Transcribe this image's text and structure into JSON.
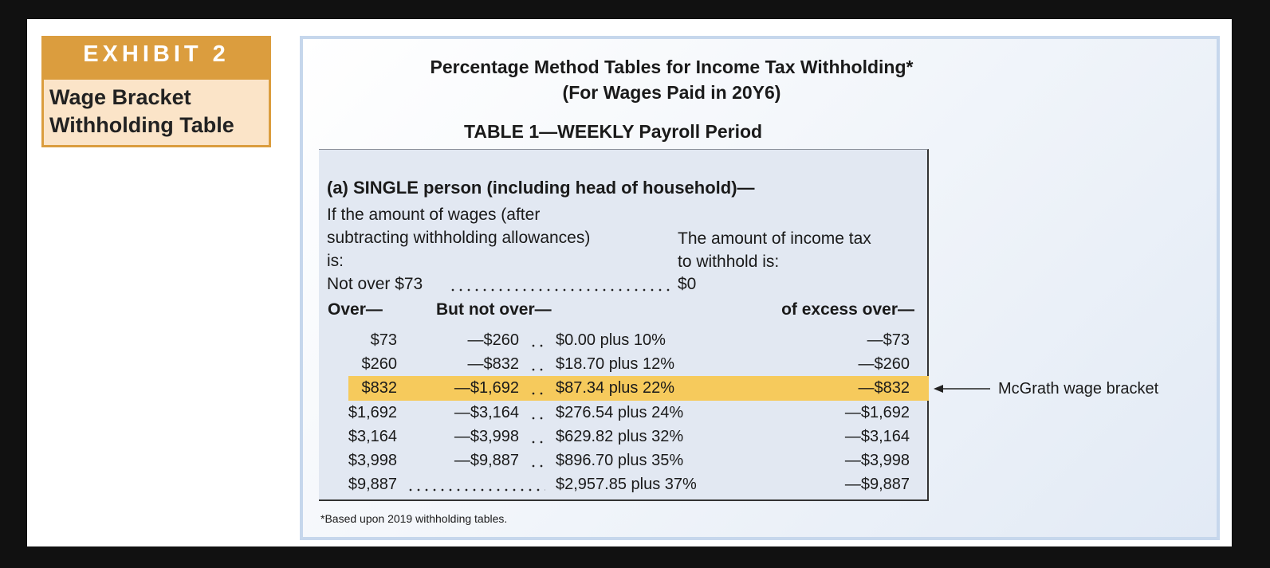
{
  "exhibit": {
    "label": "EXHIBIT 2",
    "title_lines": [
      "Wage Bracket",
      "Withholding Table"
    ]
  },
  "header": {
    "title_lines": [
      "Percentage Method Tables for Income Tax Withholding*",
      "(For Wages Paid in 20Y6)"
    ],
    "table_title": "TABLE 1—WEEKLY Payroll Period"
  },
  "table": {
    "section": "(a) SINGLE person (including head of household)—",
    "wages_header_lines": [
      "If the amount of wages (after",
      "subtracting withholding allowances)",
      "is:"
    ],
    "tax_header_lines": [
      "The amount of income tax",
      "to withhold is:"
    ],
    "first_row": {
      "condition": "Not over $73",
      "amount": "$0"
    },
    "columns": {
      "over": "Over—",
      "but_not_over": "But not over—",
      "excess": "of excess over—"
    },
    "rows": [
      {
        "over": "$73",
        "but_not_over": "—$260",
        "amount": "$0.00 plus 10%",
        "excess": "—$73"
      },
      {
        "over": "$260",
        "but_not_over": "—$832",
        "amount": "$18.70 plus 12%",
        "excess": "—$260"
      },
      {
        "over": "$832",
        "but_not_over": "—$1,692",
        "amount": "$87.34 plus 22%",
        "excess": "—$832"
      },
      {
        "over": "$1,692",
        "but_not_over": "—$3,164",
        "amount": "$276.54 plus 24%",
        "excess": "—$1,692"
      },
      {
        "over": "$3,164",
        "but_not_over": "—$3,998",
        "amount": "$629.82 plus 32%",
        "excess": "—$3,164"
      },
      {
        "over": "$3,998",
        "but_not_over": "—$9,887",
        "amount": "$896.70 plus 35%",
        "excess": "—$3,998"
      },
      {
        "over": "$9,887",
        "amount": "$2,957.85 plus 37%",
        "excess": "—$9,887"
      }
    ],
    "highlight_row": 2,
    "annotation": "McGrath wage bracket",
    "footnote": "*Based upon 2019 withholding tables."
  }
}
